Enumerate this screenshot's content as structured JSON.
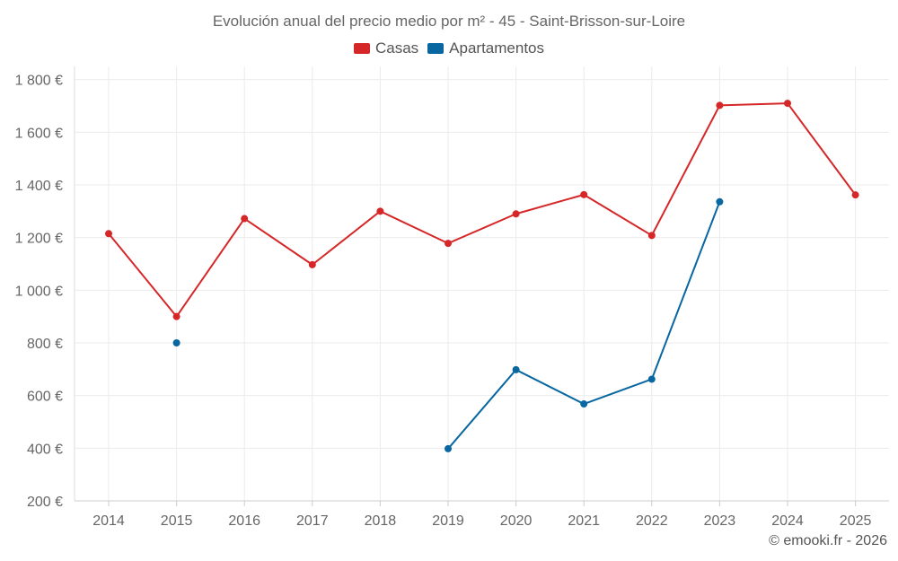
{
  "chart_data": {
    "type": "line",
    "title": "Evolución anual del precio medio por m² - 45 - Saint-Brisson-sur-Loire",
    "categories": [
      "2014",
      "2015",
      "2016",
      "2017",
      "2018",
      "2019",
      "2020",
      "2021",
      "2022",
      "2023",
      "2024",
      "2025"
    ],
    "ylim": [
      200,
      1850
    ],
    "yticks": [
      200,
      400,
      600,
      800,
      1000,
      1200,
      1400,
      1600,
      1800
    ],
    "ytick_labels": [
      "200 €",
      "400 €",
      "600 €",
      "800 €",
      "1 000 €",
      "1 200 €",
      "1 400 €",
      "1 600 €",
      "1 800 €"
    ],
    "xlabel": "",
    "ylabel": "",
    "grid": true,
    "legend_position": "top-center",
    "series": [
      {
        "name": "Casas",
        "color": "#d62728",
        "values": [
          1215,
          900,
          1272,
          1097,
          1300,
          1178,
          1290,
          1363,
          1208,
          1702,
          1710,
          1362
        ]
      },
      {
        "name": "Apartamentos",
        "color": "#0867a0",
        "values": [
          null,
          800,
          null,
          null,
          null,
          398,
          698,
          568,
          662,
          1336,
          null,
          null
        ]
      }
    ]
  },
  "footer": {
    "copyright": "© emooki.fr - 2026"
  }
}
